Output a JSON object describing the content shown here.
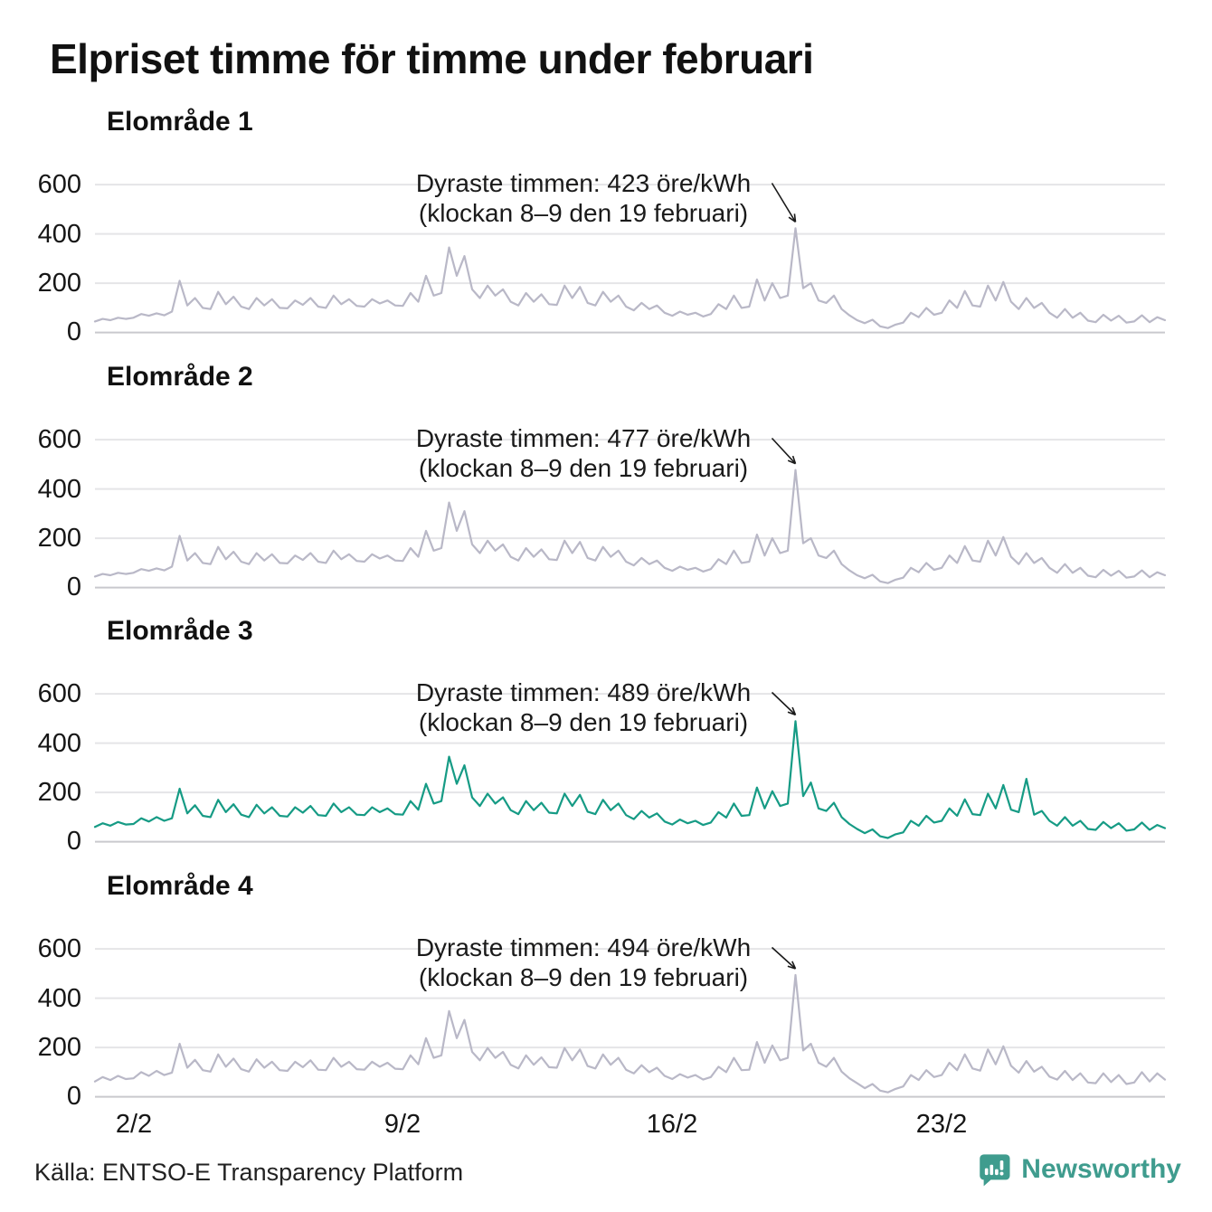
{
  "title": "Elpriset timme för timme under februari",
  "source": "Källa: ENTSO-E Transparency Platform",
  "brand": {
    "name": "Newsworthy",
    "color": "#3f9c8e",
    "icon": "speech-bubble-bar-chart-icon"
  },
  "colors": {
    "gray_line": "#b9b8c7",
    "teal_line": "#169b85",
    "grid": "#e5e5e7",
    "grid_zero": "#c9c9ce",
    "text": "#1a1a1a"
  },
  "chart_data": {
    "type": "line",
    "unit": "öre/kWh",
    "x_tick_labels": [
      "2/2",
      "9/2",
      "16/2",
      "23/2"
    ],
    "y_ticks": [
      600,
      400,
      200,
      0
    ],
    "ylim": [
      0,
      650
    ],
    "days": 28,
    "points_per_day": 5,
    "grid": true,
    "charts": [
      {
        "label": "Elområde 1",
        "color": "#b9b8c7",
        "annotation": {
          "line1": "Dyraste timmen: 423 öre/kWh",
          "line2": "(klockan 8–9 den 19 februari)"
        },
        "peak_value": 423,
        "peak_index": 91,
        "values": [
          45,
          55,
          50,
          60,
          55,
          60,
          75,
          68,
          78,
          70,
          85,
          210,
          110,
          140,
          100,
          95,
          165,
          115,
          145,
          105,
          95,
          140,
          110,
          135,
          100,
          98,
          130,
          112,
          140,
          105,
          100,
          150,
          115,
          135,
          108,
          105,
          135,
          118,
          130,
          110,
          108,
          160,
          125,
          230,
          150,
          160,
          345,
          230,
          310,
          175,
          140,
          190,
          150,
          175,
          125,
          110,
          160,
          125,
          155,
          115,
          112,
          190,
          140,
          185,
          120,
          110,
          165,
          125,
          150,
          105,
          90,
          120,
          95,
          110,
          80,
          68,
          85,
          72,
          80,
          65,
          75,
          115,
          95,
          150,
          100,
          105,
          215,
          130,
          200,
          140,
          150,
          423,
          180,
          200,
          130,
          120,
          150,
          95,
          70,
          50,
          38,
          52,
          25,
          18,
          32,
          40,
          80,
          62,
          100,
          72,
          80,
          130,
          100,
          168,
          110,
          105,
          190,
          130,
          205,
          125,
          95,
          140,
          100,
          120,
          80,
          60,
          95,
          60,
          80,
          48,
          42,
          72,
          48,
          68,
          40,
          45,
          70,
          42,
          62,
          50
        ]
      },
      {
        "label": "Elområde 2",
        "color": "#b9b8c7",
        "annotation": {
          "line1": "Dyraste timmen: 477 öre/kWh",
          "line2": "(klockan 8–9 den 19 februari)"
        },
        "peak_value": 477,
        "peak_index": 91,
        "values": [
          45,
          55,
          50,
          60,
          55,
          60,
          75,
          68,
          78,
          70,
          85,
          210,
          110,
          140,
          100,
          95,
          165,
          115,
          145,
          105,
          95,
          140,
          110,
          135,
          100,
          98,
          130,
          112,
          140,
          105,
          100,
          150,
          115,
          135,
          108,
          105,
          135,
          118,
          130,
          110,
          108,
          160,
          125,
          230,
          150,
          160,
          345,
          230,
          310,
          175,
          140,
          190,
          150,
          175,
          125,
          110,
          160,
          125,
          155,
          115,
          112,
          190,
          140,
          185,
          120,
          110,
          165,
          125,
          150,
          105,
          90,
          120,
          95,
          110,
          80,
          68,
          85,
          72,
          80,
          65,
          75,
          115,
          95,
          150,
          100,
          105,
          215,
          130,
          200,
          140,
          150,
          477,
          180,
          200,
          130,
          120,
          150,
          95,
          70,
          50,
          38,
          52,
          25,
          18,
          32,
          40,
          80,
          62,
          100,
          72,
          80,
          130,
          100,
          168,
          110,
          105,
          190,
          130,
          205,
          125,
          95,
          140,
          100,
          120,
          80,
          60,
          95,
          60,
          80,
          48,
          42,
          72,
          48,
          68,
          40,
          45,
          70,
          42,
          62,
          50
        ]
      },
      {
        "label": "Elområde 3",
        "color": "#169b85",
        "annotation": {
          "line1": "Dyraste timmen: 489 öre/kWh",
          "line2": "(klockan 8–9 den 19 februari)"
        },
        "peak_value": 489,
        "peak_index": 91,
        "values": [
          60,
          75,
          65,
          80,
          70,
          72,
          95,
          82,
          100,
          85,
          95,
          215,
          115,
          148,
          105,
          100,
          170,
          120,
          152,
          110,
          100,
          150,
          115,
          140,
          105,
          102,
          140,
          118,
          145,
          108,
          105,
          155,
          120,
          140,
          110,
          108,
          140,
          120,
          135,
          112,
          110,
          165,
          130,
          235,
          155,
          165,
          345,
          235,
          310,
          180,
          145,
          195,
          155,
          180,
          128,
          112,
          165,
          128,
          158,
          118,
          115,
          195,
          145,
          190,
          122,
          112,
          170,
          128,
          155,
          108,
          92,
          125,
          98,
          115,
          82,
          70,
          90,
          75,
          85,
          68,
          78,
          120,
          98,
          155,
          105,
          108,
          220,
          135,
          205,
          145,
          155,
          489,
          185,
          240,
          135,
          125,
          158,
          100,
          72,
          52,
          35,
          50,
          22,
          15,
          30,
          38,
          85,
          65,
          105,
          78,
          85,
          135,
          105,
          172,
          112,
          108,
          195,
          135,
          230,
          130,
          120,
          255,
          110,
          125,
          85,
          65,
          100,
          65,
          85,
          52,
          48,
          80,
          55,
          75,
          45,
          50,
          78,
          48,
          68,
          55
        ]
      },
      {
        "label": "Elområde 4",
        "color": "#b9b8c7",
        "annotation": {
          "line1": "Dyraste timmen: 494 öre/kWh",
          "line2": "(klockan 8–9 den 19 februari)"
        },
        "peak_value": 494,
        "peak_index": 91,
        "values": [
          62,
          80,
          68,
          85,
          72,
          75,
          100,
          85,
          105,
          88,
          98,
          215,
          118,
          150,
          108,
          102,
          172,
          122,
          155,
          112,
          102,
          152,
          118,
          142,
          108,
          105,
          142,
          120,
          148,
          110,
          108,
          158,
          122,
          142,
          112,
          110,
          142,
          122,
          138,
          114,
          112,
          168,
          132,
          238,
          158,
          168,
          348,
          238,
          312,
          182,
          148,
          198,
          158,
          182,
          130,
          115,
          168,
          130,
          160,
          120,
          118,
          198,
          148,
          192,
          125,
          115,
          172,
          130,
          158,
          110,
          95,
          128,
          100,
          118,
          85,
          72,
          92,
          78,
          88,
          70,
          80,
          122,
          100,
          158,
          108,
          110,
          222,
          138,
          208,
          148,
          158,
          494,
          188,
          215,
          138,
          122,
          158,
          102,
          75,
          55,
          35,
          52,
          25,
          18,
          32,
          42,
          88,
          68,
          108,
          80,
          88,
          138,
          108,
          172,
          115,
          106,
          192,
          132,
          205,
          126,
          98,
          145,
          102,
          122,
          82,
          70,
          105,
          68,
          95,
          58,
          55,
          95,
          60,
          88,
          52,
          58,
          100,
          62,
          95,
          70
        ]
      }
    ]
  }
}
